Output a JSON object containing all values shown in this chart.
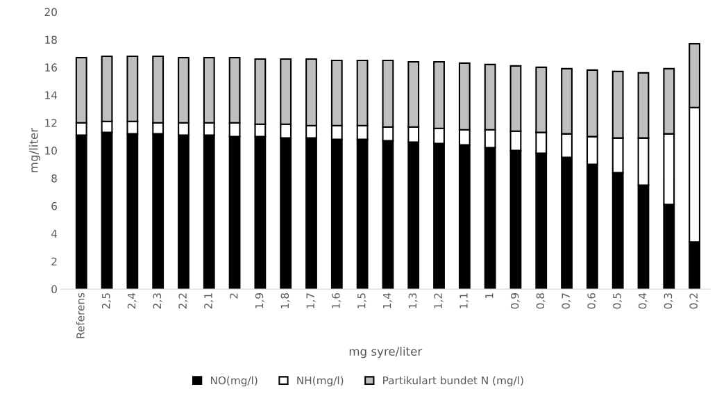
{
  "chart_data": {
    "type": "bar",
    "stacked": true,
    "xlabel": "mg syre/liter",
    "ylabel": "mg/liter",
    "categories": [
      "Referens",
      "2,5",
      "2,4",
      "2,3",
      "2,2",
      "2,1",
      "2",
      "1,9",
      "1,8",
      "1,7",
      "1,6",
      "1,5",
      "1,4",
      "1,3",
      "1,2",
      "1,1",
      "1",
      "0,9",
      "0,8",
      "0,7",
      "0,6",
      "0,5",
      "0,4",
      "0,3",
      "0,2"
    ],
    "series": [
      {
        "name": "NO(mg/l)",
        "color": "#000000",
        "values": [
          11.1,
          11.3,
          11.2,
          11.2,
          11.1,
          11.1,
          11.0,
          11.0,
          10.9,
          10.9,
          10.8,
          10.8,
          10.7,
          10.6,
          10.5,
          10.4,
          10.2,
          10.0,
          9.8,
          9.5,
          9.0,
          8.4,
          7.5,
          6.1,
          3.4
        ]
      },
      {
        "name": "NH(mg/l)",
        "color": "#ffffff",
        "values": [
          0.9,
          0.8,
          0.9,
          0.8,
          0.9,
          0.9,
          1.0,
          0.9,
          1.0,
          0.9,
          1.0,
          1.0,
          1.0,
          1.1,
          1.1,
          1.1,
          1.3,
          1.4,
          1.5,
          1.7,
          2.0,
          2.5,
          3.4,
          5.1,
          9.7
        ]
      },
      {
        "name": "Partikulart bundet N (mg/l)",
        "color": "#bfbfbf",
        "values": [
          4.7,
          4.7,
          4.7,
          4.8,
          4.7,
          4.7,
          4.7,
          4.7,
          4.7,
          4.8,
          4.7,
          4.7,
          4.8,
          4.7,
          4.8,
          4.8,
          4.7,
          4.7,
          4.7,
          4.7,
          4.8,
          4.8,
          4.7,
          4.7,
          4.6
        ]
      }
    ],
    "ylim": [
      0,
      20
    ],
    "yticks": [
      0,
      2,
      4,
      6,
      8,
      10,
      12,
      14,
      16,
      18,
      20
    ],
    "grid": false,
    "legend": "bottom"
  }
}
